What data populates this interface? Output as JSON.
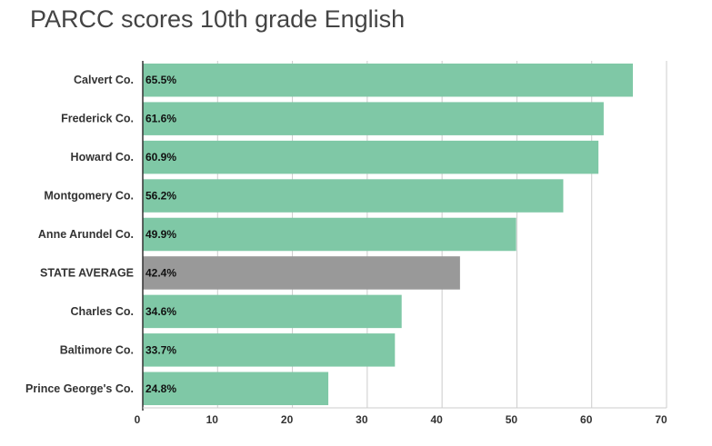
{
  "chart_data": {
    "type": "bar",
    "orientation": "horizontal",
    "title": "PARCC scores 10th grade English",
    "xlabel": "",
    "ylabel": "",
    "categories": [
      "Calvert Co.",
      "Frederick Co.",
      "Howard Co.",
      "Montgomery Co.",
      "Anne Arundel Co.",
      "STATE AVERAGE",
      "Charles Co.",
      "Baltimore Co.",
      "Prince George's Co."
    ],
    "values": [
      65.5,
      61.6,
      60.9,
      56.2,
      49.9,
      42.4,
      34.6,
      33.7,
      24.8
    ],
    "data_labels": [
      "65.5%",
      "61.6%",
      "60.9%",
      "56.2%",
      "49.9%",
      "42.4%",
      "34.6%",
      "33.7%",
      "24.8%"
    ],
    "highlight_category": "STATE AVERAGE",
    "xlim": [
      0,
      70
    ],
    "xticks": [
      0,
      10,
      20,
      30,
      40,
      50,
      60,
      70
    ],
    "grid": "vertical",
    "legend": "none",
    "colors": {
      "bar": "#7fc8a6",
      "highlight": "#999999",
      "grid": "#cccccc",
      "axis": "#333333"
    }
  }
}
